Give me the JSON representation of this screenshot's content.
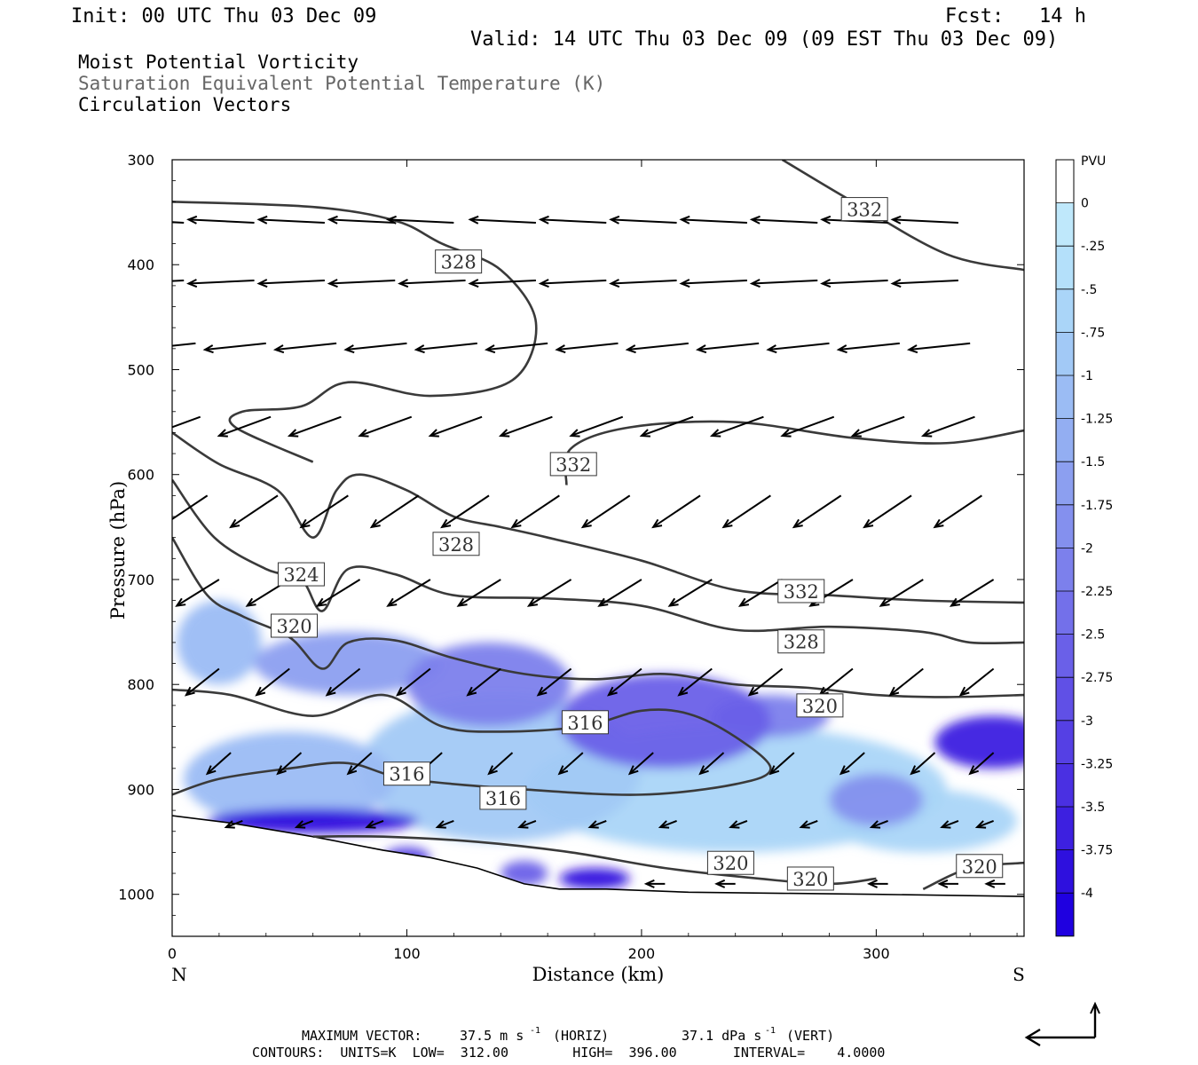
{
  "header": {
    "init": "Init: 00 UTC Thu 03 Dec 09",
    "fcst": "Fcst:   14 h",
    "valid": "Valid: 14 UTC Thu 03 Dec 09 (09 EST Thu 03 Dec 09)",
    "field1": "Moist Potential Vorticity",
    "field2": "Saturation Equivalent Potential Temperature (K)",
    "field3": "Circulation Vectors"
  },
  "colorbar": {
    "unit": "PVU",
    "labels": [
      "0",
      "-.25",
      "-.5",
      "-.75",
      "-1",
      "-1.25",
      "-1.5",
      "-1.75",
      "-2",
      "-2.25",
      "-2.5",
      "-2.75",
      "-3",
      "-3.25",
      "-3.5",
      "-3.75",
      "-4"
    ],
    "colors": [
      "#ffffff",
      "#bfe8fb",
      "#b4e0fa",
      "#aad5f8",
      "#a2c9f6",
      "#9bbcf4",
      "#93aef2",
      "#8c9ff0",
      "#8490ee",
      "#7c80ec",
      "#7370ea",
      "#6a60e8",
      "#6050e6",
      "#5540e4",
      "#4a30e2",
      "#3d20e0",
      "#2e10de",
      "#1f00e0"
    ]
  },
  "footer": {
    "max_vector_label": "MAXIMUM VECTOR:",
    "horiz_value": "37.5 m s",
    "horiz_unit": "(HORIZ)",
    "vert_value": "37.1 dPa s",
    "vert_unit": "(VERT)",
    "exponent": "-1",
    "contours": "CONTOURS:  UNITS=K  LOW=  312.00        HIGH=  396.00       INTERVAL=    4.0000"
  },
  "chart_data": {
    "type": "cross-section",
    "title": "Moist Potential Vorticity / Saturation Equivalent Potential Temperature (K) / Circulation Vectors",
    "xlabel": "Distance (km)",
    "ylabel": "Pressure (hPa)",
    "xlim": [
      0,
      363
    ],
    "ylim": [
      1040,
      300
    ],
    "x_ticks": [
      0,
      100,
      200,
      300
    ],
    "y_ticks": [
      300,
      400,
      500,
      600,
      700,
      800,
      900,
      1000
    ],
    "x_end_labels": {
      "left": "N",
      "right": "S"
    },
    "contour_interval": 4,
    "isentropes": [
      {
        "value": 332,
        "points": [
          [
            260,
            300
          ],
          [
            290,
            340
          ],
          [
            330,
            390
          ],
          [
            363,
            405
          ]
        ]
      },
      {
        "value": 328,
        "points": [
          [
            0,
            340
          ],
          [
            60,
            345
          ],
          [
            95,
            358
          ],
          [
            115,
            380
          ],
          [
            140,
            405
          ],
          [
            155,
            455
          ],
          [
            145,
            510
          ],
          [
            110,
            525
          ],
          [
            75,
            512
          ],
          [
            55,
            535
          ],
          [
            30,
            540
          ],
          [
            27,
            555
          ],
          [
            60,
            588
          ]
        ]
      },
      {
        "value": 332,
        "points": [
          [
            168,
            610
          ],
          [
            170,
            575
          ],
          [
            195,
            555
          ],
          [
            240,
            550
          ],
          [
            290,
            565
          ],
          [
            330,
            570
          ],
          [
            363,
            558
          ]
        ]
      },
      {
        "value": 328,
        "points": [
          [
            0,
            560
          ],
          [
            20,
            590
          ],
          [
            45,
            615
          ],
          [
            60,
            660
          ],
          [
            70,
            615
          ],
          [
            80,
            600
          ],
          [
            100,
            615
          ],
          [
            120,
            640
          ],
          [
            140,
            650
          ],
          [
            160,
            660
          ],
          [
            200,
            682
          ],
          [
            240,
            710
          ],
          [
            280,
            715
          ],
          [
            320,
            720
          ],
          [
            363,
            722
          ]
        ]
      },
      {
        "value": 324,
        "points": [
          [
            0,
            605
          ],
          [
            18,
            660
          ],
          [
            40,
            690
          ],
          [
            55,
            700
          ],
          [
            64,
            730
          ],
          [
            75,
            690
          ],
          [
            95,
            695
          ],
          [
            120,
            715
          ],
          [
            160,
            718
          ],
          [
            200,
            725
          ],
          [
            240,
            748
          ],
          [
            280,
            745
          ],
          [
            320,
            750
          ],
          [
            340,
            760
          ],
          [
            363,
            760
          ]
        ]
      },
      {
        "value": 320,
        "points": [
          [
            0,
            660
          ],
          [
            15,
            715
          ],
          [
            30,
            735
          ],
          [
            50,
            755
          ],
          [
            64,
            785
          ],
          [
            75,
            760
          ],
          [
            95,
            758
          ],
          [
            120,
            775
          ],
          [
            150,
            790
          ],
          [
            180,
            795
          ],
          [
            210,
            790
          ],
          [
            240,
            800
          ],
          [
            270,
            803
          ],
          [
            300,
            810
          ],
          [
            330,
            812
          ],
          [
            363,
            810
          ]
        ]
      },
      {
        "value": 316,
        "points": [
          [
            0,
            805
          ],
          [
            25,
            810
          ],
          [
            60,
            830
          ],
          [
            90,
            810
          ],
          [
            115,
            840
          ],
          [
            140,
            845
          ],
          [
            175,
            840
          ],
          [
            200,
            825
          ],
          [
            220,
            828
          ],
          [
            240,
            850
          ],
          [
            255,
            880
          ],
          [
            240,
            895
          ],
          [
            200,
            905
          ],
          [
            150,
            900
          ],
          [
            100,
            890
          ],
          [
            75,
            875
          ],
          [
            50,
            880
          ],
          [
            20,
            890
          ],
          [
            0,
            905
          ]
        ]
      },
      {
        "value": 320,
        "points": [
          [
            60,
            945
          ],
          [
            90,
            945
          ],
          [
            130,
            950
          ],
          [
            170,
            960
          ],
          [
            210,
            975
          ],
          [
            250,
            985
          ],
          [
            280,
            990
          ],
          [
            300,
            985
          ]
        ]
      },
      {
        "value": 320,
        "points": [
          [
            320,
            995
          ],
          [
            340,
            975
          ],
          [
            363,
            970
          ]
        ]
      }
    ],
    "isentrope_labels": [
      {
        "value": 332,
        "x": 295,
        "p": 347
      },
      {
        "value": 328,
        "x": 122,
        "p": 397
      },
      {
        "value": 332,
        "x": 171,
        "p": 590
      },
      {
        "value": 328,
        "x": 121,
        "p": 666
      },
      {
        "value": 324,
        "x": 55,
        "p": 695
      },
      {
        "value": 332,
        "x": 268,
        "p": 711
      },
      {
        "value": 320,
        "x": 52,
        "p": 744
      },
      {
        "value": 328,
        "x": 268,
        "p": 759
      },
      {
        "value": 320,
        "x": 276,
        "p": 820
      },
      {
        "value": 316,
        "x": 176,
        "p": 836
      },
      {
        "value": 316,
        "x": 100,
        "p": 885
      },
      {
        "value": 316,
        "x": 141,
        "p": 908
      },
      {
        "value": 320,
        "x": 238,
        "p": 970
      },
      {
        "value": 320,
        "x": 272,
        "p": 985
      },
      {
        "value": 320,
        "x": 344,
        "p": 973
      }
    ],
    "mpv_blobs": [
      {
        "x": 20,
        "p": 760,
        "rx": 18,
        "rp": 40,
        "v": -1.0
      },
      {
        "x": 75,
        "p": 780,
        "rx": 40,
        "rp": 30,
        "v": -1.5
      },
      {
        "x": 135,
        "p": 800,
        "rx": 35,
        "rp": 40,
        "v": -2.0
      },
      {
        "x": 210,
        "p": 835,
        "rx": 45,
        "rp": 45,
        "v": -2.5
      },
      {
        "x": 255,
        "p": 830,
        "rx": 25,
        "rp": 20,
        "v": -2.0
      },
      {
        "x": 300,
        "p": 910,
        "rx": 20,
        "rp": 25,
        "v": -1.75
      },
      {
        "x": 350,
        "p": 855,
        "rx": 25,
        "rp": 25,
        "v": -3.5
      },
      {
        "x": 50,
        "p": 890,
        "rx": 45,
        "rp": 45,
        "v": -1.0
      },
      {
        "x": 140,
        "p": 880,
        "rx": 60,
        "rp": 70,
        "v": -0.75
      },
      {
        "x": 240,
        "p": 900,
        "rx": 90,
        "rp": 60,
        "v": -0.5
      },
      {
        "x": 320,
        "p": 930,
        "rx": 40,
        "rp": 30,
        "v": -0.5
      },
      {
        "x": 60,
        "p": 930,
        "rx": 45,
        "rp": 12,
        "v": -3.75
      },
      {
        "x": 100,
        "p": 965,
        "rx": 10,
        "rp": 10,
        "v": -3.0
      },
      {
        "x": 150,
        "p": 980,
        "rx": 10,
        "rp": 12,
        "v": -2.5
      },
      {
        "x": 180,
        "p": 985,
        "rx": 15,
        "rp": 10,
        "v": -3.75
      }
    ],
    "vector_rows": [
      {
        "p": 360,
        "xs": [
          5,
          35,
          65,
          95,
          120,
          155,
          185,
          215,
          245,
          275,
          305,
          335
        ],
        "dx": -28,
        "dp": -3
      },
      {
        "p": 415,
        "xs": [
          5,
          35,
          65,
          95,
          125,
          155,
          185,
          215,
          245,
          275,
          305,
          335
        ],
        "dx": -28,
        "dp": 3
      },
      {
        "p": 475,
        "xs": [
          10,
          40,
          70,
          100,
          130,
          160,
          190,
          220,
          250,
          280,
          310,
          340
        ],
        "dx": -26,
        "dp": 6
      },
      {
        "p": 545,
        "xs": [
          12,
          42,
          72,
          102,
          132,
          162,
          192,
          222,
          252,
          282,
          312,
          342
        ],
        "dx": -22,
        "dp": 18
      },
      {
        "p": 620,
        "xs": [
          15,
          45,
          75,
          105,
          135,
          165,
          195,
          225,
          255,
          285,
          315,
          345
        ],
        "dx": -20,
        "dp": 30
      },
      {
        "p": 700,
        "xs": [
          20,
          50,
          80,
          110,
          140,
          170,
          200,
          230,
          260,
          290,
          320,
          350
        ],
        "dx": -18,
        "dp": 25
      },
      {
        "p": 785,
        "xs": [
          20,
          50,
          80,
          110,
          140,
          170,
          200,
          230,
          260,
          290,
          320,
          350
        ],
        "dx": -14,
        "dp": 25
      },
      {
        "p": 865,
        "xs": [
          25,
          55,
          85,
          115,
          145,
          175,
          205,
          235,
          265,
          295,
          325,
          350
        ],
        "dx": -10,
        "dp": 20
      },
      {
        "p": 930,
        "xs": [
          30,
          60,
          90,
          120,
          155,
          185,
          215,
          245,
          275,
          305,
          335,
          350
        ],
        "dx": -7,
        "dp": 6
      },
      {
        "p": 990,
        "xs": [
          210,
          240,
          275,
          305,
          335,
          355
        ],
        "dx": -8,
        "dp": 0
      }
    ],
    "terrain": [
      [
        0,
        925
      ],
      [
        25,
        932
      ],
      [
        60,
        945
      ],
      [
        90,
        958
      ],
      [
        110,
        965
      ],
      [
        130,
        975
      ],
      [
        150,
        990
      ],
      [
        165,
        995
      ],
      [
        185,
        995
      ],
      [
        220,
        998
      ],
      [
        260,
        999
      ],
      [
        300,
        1000
      ],
      [
        363,
        1002
      ]
    ]
  }
}
